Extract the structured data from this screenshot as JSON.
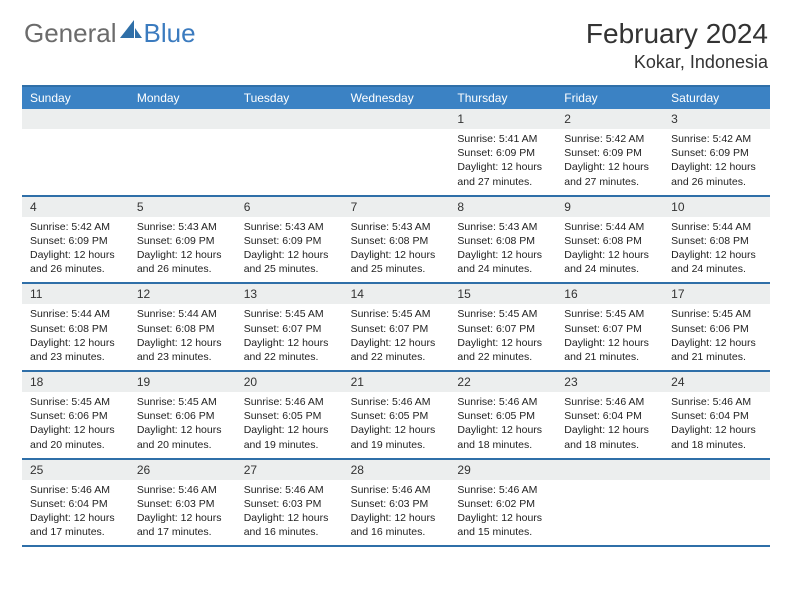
{
  "logo": {
    "text1": "General",
    "text2": "Blue"
  },
  "title": "February 2024",
  "location": "Kokar, Indonesia",
  "colors": {
    "header_bg": "#3b82c4",
    "rule": "#2f6fa8",
    "daynum_bg": "#eceeee",
    "text": "#222222",
    "logo_gray": "#6b6b6b",
    "logo_blue": "#3b7bbf"
  },
  "day_names": [
    "Sunday",
    "Monday",
    "Tuesday",
    "Wednesday",
    "Thursday",
    "Friday",
    "Saturday"
  ],
  "weeks": [
    [
      {
        "n": "",
        "sr": "",
        "ss": "",
        "dl": ""
      },
      {
        "n": "",
        "sr": "",
        "ss": "",
        "dl": ""
      },
      {
        "n": "",
        "sr": "",
        "ss": "",
        "dl": ""
      },
      {
        "n": "",
        "sr": "",
        "ss": "",
        "dl": ""
      },
      {
        "n": "1",
        "sr": "5:41 AM",
        "ss": "6:09 PM",
        "dl": "12 hours and 27 minutes."
      },
      {
        "n": "2",
        "sr": "5:42 AM",
        "ss": "6:09 PM",
        "dl": "12 hours and 27 minutes."
      },
      {
        "n": "3",
        "sr": "5:42 AM",
        "ss": "6:09 PM",
        "dl": "12 hours and 26 minutes."
      }
    ],
    [
      {
        "n": "4",
        "sr": "5:42 AM",
        "ss": "6:09 PM",
        "dl": "12 hours and 26 minutes."
      },
      {
        "n": "5",
        "sr": "5:43 AM",
        "ss": "6:09 PM",
        "dl": "12 hours and 26 minutes."
      },
      {
        "n": "6",
        "sr": "5:43 AM",
        "ss": "6:09 PM",
        "dl": "12 hours and 25 minutes."
      },
      {
        "n": "7",
        "sr": "5:43 AM",
        "ss": "6:08 PM",
        "dl": "12 hours and 25 minutes."
      },
      {
        "n": "8",
        "sr": "5:43 AM",
        "ss": "6:08 PM",
        "dl": "12 hours and 24 minutes."
      },
      {
        "n": "9",
        "sr": "5:44 AM",
        "ss": "6:08 PM",
        "dl": "12 hours and 24 minutes."
      },
      {
        "n": "10",
        "sr": "5:44 AM",
        "ss": "6:08 PM",
        "dl": "12 hours and 24 minutes."
      }
    ],
    [
      {
        "n": "11",
        "sr": "5:44 AM",
        "ss": "6:08 PM",
        "dl": "12 hours and 23 minutes."
      },
      {
        "n": "12",
        "sr": "5:44 AM",
        "ss": "6:08 PM",
        "dl": "12 hours and 23 minutes."
      },
      {
        "n": "13",
        "sr": "5:45 AM",
        "ss": "6:07 PM",
        "dl": "12 hours and 22 minutes."
      },
      {
        "n": "14",
        "sr": "5:45 AM",
        "ss": "6:07 PM",
        "dl": "12 hours and 22 minutes."
      },
      {
        "n": "15",
        "sr": "5:45 AM",
        "ss": "6:07 PM",
        "dl": "12 hours and 22 minutes."
      },
      {
        "n": "16",
        "sr": "5:45 AM",
        "ss": "6:07 PM",
        "dl": "12 hours and 21 minutes."
      },
      {
        "n": "17",
        "sr": "5:45 AM",
        "ss": "6:06 PM",
        "dl": "12 hours and 21 minutes."
      }
    ],
    [
      {
        "n": "18",
        "sr": "5:45 AM",
        "ss": "6:06 PM",
        "dl": "12 hours and 20 minutes."
      },
      {
        "n": "19",
        "sr": "5:45 AM",
        "ss": "6:06 PM",
        "dl": "12 hours and 20 minutes."
      },
      {
        "n": "20",
        "sr": "5:46 AM",
        "ss": "6:05 PM",
        "dl": "12 hours and 19 minutes."
      },
      {
        "n": "21",
        "sr": "5:46 AM",
        "ss": "6:05 PM",
        "dl": "12 hours and 19 minutes."
      },
      {
        "n": "22",
        "sr": "5:46 AM",
        "ss": "6:05 PM",
        "dl": "12 hours and 18 minutes."
      },
      {
        "n": "23",
        "sr": "5:46 AM",
        "ss": "6:04 PM",
        "dl": "12 hours and 18 minutes."
      },
      {
        "n": "24",
        "sr": "5:46 AM",
        "ss": "6:04 PM",
        "dl": "12 hours and 18 minutes."
      }
    ],
    [
      {
        "n": "25",
        "sr": "5:46 AM",
        "ss": "6:04 PM",
        "dl": "12 hours and 17 minutes."
      },
      {
        "n": "26",
        "sr": "5:46 AM",
        "ss": "6:03 PM",
        "dl": "12 hours and 17 minutes."
      },
      {
        "n": "27",
        "sr": "5:46 AM",
        "ss": "6:03 PM",
        "dl": "12 hours and 16 minutes."
      },
      {
        "n": "28",
        "sr": "5:46 AM",
        "ss": "6:03 PM",
        "dl": "12 hours and 16 minutes."
      },
      {
        "n": "29",
        "sr": "5:46 AM",
        "ss": "6:02 PM",
        "dl": "12 hours and 15 minutes."
      },
      {
        "n": "",
        "sr": "",
        "ss": "",
        "dl": ""
      },
      {
        "n": "",
        "sr": "",
        "ss": "",
        "dl": ""
      }
    ]
  ],
  "labels": {
    "sunrise": "Sunrise:",
    "sunset": "Sunset:",
    "daylight": "Daylight:"
  }
}
